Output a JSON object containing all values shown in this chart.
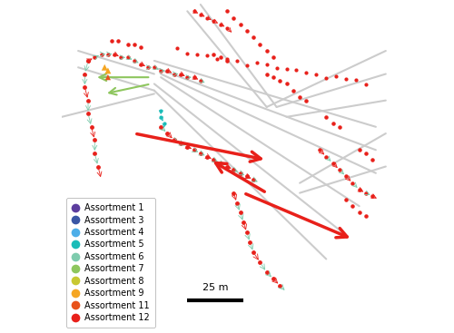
{
  "legend_entries": [
    {
      "label": "Assortment 1",
      "color": "#5c3d9e"
    },
    {
      "label": "Assortment 3",
      "color": "#3a56a5"
    },
    {
      "label": "Assortment 4",
      "color": "#4daee8"
    },
    {
      "label": "Assortment 5",
      "color": "#1abcb8"
    },
    {
      "label": "Assortment 6",
      "color": "#7ecbad"
    },
    {
      "label": "Assortment 7",
      "color": "#8ec65e"
    },
    {
      "label": "Assortment 8",
      "color": "#c8c832"
    },
    {
      "label": "Assortment 9",
      "color": "#f5a623"
    },
    {
      "label": "Assortment 11",
      "color": "#e8521a"
    },
    {
      "label": "Assortment 12",
      "color": "#e8201a"
    }
  ],
  "scalebar_label": "25 m",
  "background_color": "#ffffff",
  "road_network_color": "#cccccc",
  "long_arrow_color": "#e8201a",
  "figure_width": 5.0,
  "figure_height": 3.67
}
